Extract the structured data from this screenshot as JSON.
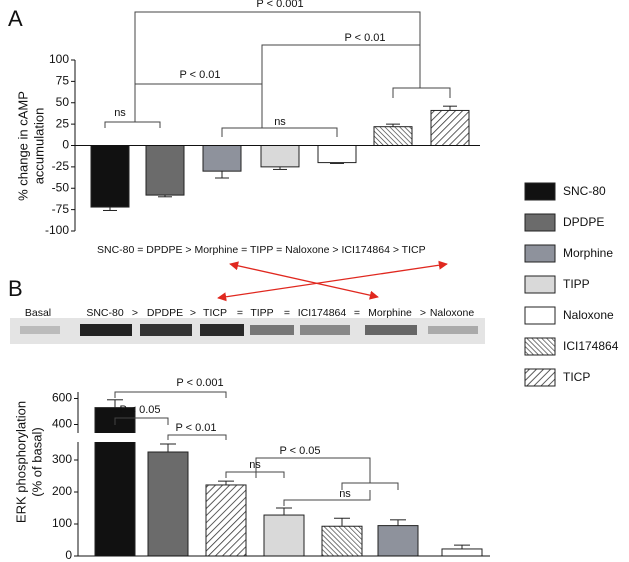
{
  "chart_data": [
    {
      "type": "bar",
      "panel": "A",
      "ylabel": [
        "% change in cAMP",
        "accumulation"
      ],
      "categories": [
        "SNC-80",
        "DPDPE",
        "Morphine",
        "TIPP",
        "Naloxone",
        "ICI174864",
        "TICP"
      ],
      "values": [
        -72,
        -58,
        -30,
        -25,
        -20,
        22,
        41
      ],
      "errors": [
        4,
        2,
        8,
        3,
        1,
        3,
        5
      ],
      "colors": [
        "#111111",
        "#6b6b6b",
        "#8e929c",
        "#d9d9d9",
        "#ffffff",
        "#ffffff",
        "#ffffff"
      ],
      "hatch": [
        "none",
        "none",
        "none",
        "none",
        "none",
        "back",
        "forward"
      ],
      "ylim": [
        -100,
        100
      ],
      "yticks": [
        -100,
        -75,
        -50,
        -25,
        0,
        25,
        50,
        75,
        100
      ],
      "annotations": [
        "P < 0.001",
        "P < 0.01",
        "P < 0.01",
        "ns",
        "ns"
      ],
      "rank_order": "SNC-80 = DPDPE > Morphine =  TIPP  = Naloxone > ICI174864 > TICP",
      "legend": "right"
    },
    {
      "type": "bar",
      "panel": "B",
      "ylabel": [
        "ERK phosphorylation",
        "(% of  basal)"
      ],
      "categories": [
        "SNC-80",
        "DPDPE",
        "TICP",
        "TIPP",
        "ICI174864",
        "Morphine",
        "Naloxone"
      ],
      "values": [
        530,
        325,
        222,
        128,
        93,
        95,
        22
      ],
      "errors": [
        60,
        25,
        12,
        22,
        25,
        18,
        12
      ],
      "ylim": [
        0,
        650
      ],
      "ybreak": 350,
      "yticks": [
        0,
        100,
        200,
        300,
        400,
        600
      ],
      "blot_labels": [
        "Basal",
        "SNC-80",
        ">",
        "DPDPE",
        ">",
        "TICP",
        "=",
        "TIPP",
        "=",
        "ICI174864",
        "=",
        "Morphine",
        ">",
        "Naloxone"
      ],
      "annotations": [
        "P < 0.001",
        "P < 0.05",
        "P < 0.01",
        "P < 0.05",
        "ns",
        "ns"
      ]
    }
  ]
}
